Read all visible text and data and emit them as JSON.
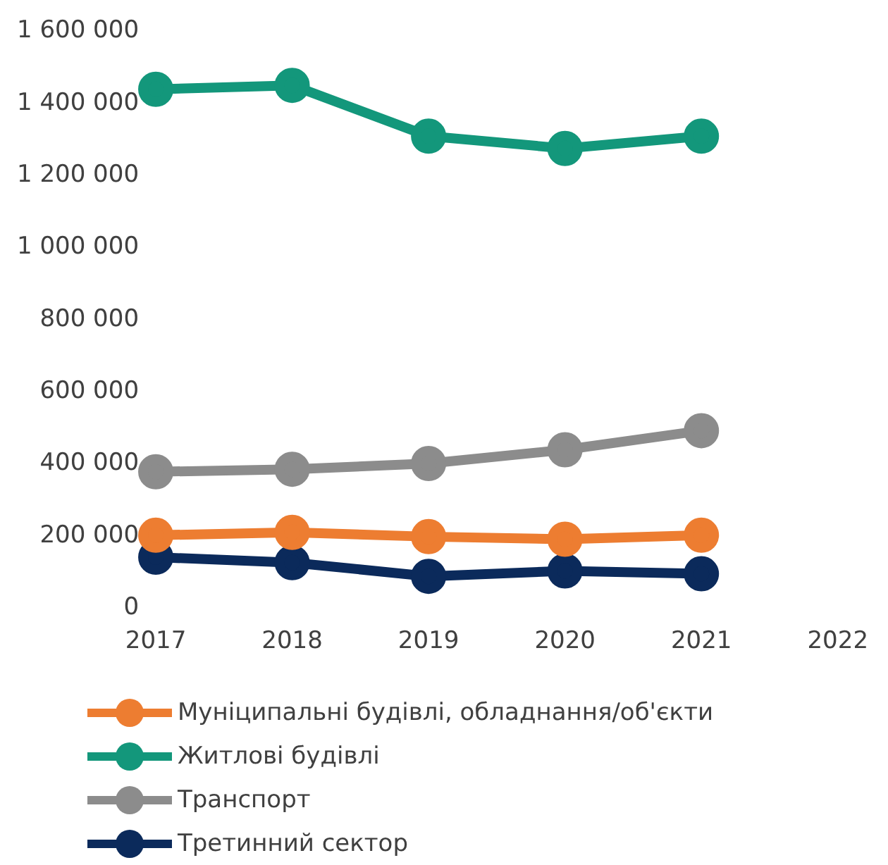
{
  "chart_data": {
    "type": "line",
    "categories": [
      "2017",
      "2018",
      "2019",
      "2020",
      "2021",
      "2022"
    ],
    "series": [
      {
        "name": "Муніципальні будівлі, обладнання/об'єкти",
        "color": "#ed7d31",
        "values": [
          202000,
          210000,
          198000,
          191000,
          202000,
          null
        ]
      },
      {
        "name": "Житлові будівлі",
        "color": "#13977b",
        "values": [
          1439000,
          1450000,
          1309000,
          1275000,
          1309000,
          null
        ]
      },
      {
        "name": "Транспорт",
        "color": "#8c8c8c",
        "values": [
          378000,
          385000,
          401000,
          439000,
          492000,
          null
        ]
      },
      {
        "name": "Третинний сектор",
        "color": "#0b2a5b",
        "values": [
          141000,
          126000,
          88000,
          103000,
          95000,
          null
        ]
      }
    ],
    "ylim": [
      0,
      1600000
    ],
    "yticks": [
      {
        "value": 0,
        "label": "0"
      },
      {
        "value": 200000,
        "label": "200 000"
      },
      {
        "value": 400000,
        "label": "400 000"
      },
      {
        "value": 600000,
        "label": "600 000"
      },
      {
        "value": 800000,
        "label": "800 000"
      },
      {
        "value": 1000000,
        "label": "1 000 000"
      },
      {
        "value": 1200000,
        "label": "1 200 000"
      },
      {
        "value": 1400000,
        "label": "1 400 000"
      },
      {
        "value": 1600000,
        "label": "1 600 000"
      }
    ],
    "grid": false,
    "legend": "bottom",
    "marker": "circle",
    "line_style": "solid"
  }
}
